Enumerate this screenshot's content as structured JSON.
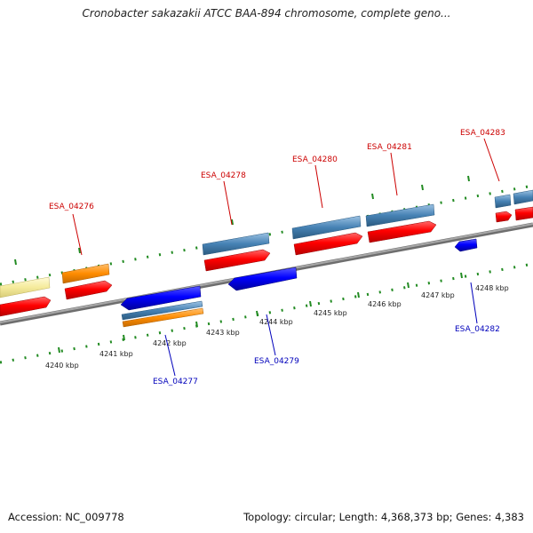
{
  "title": "Cronobacter sakazakii ATCC BAA-894 chromosome, complete geno...",
  "footer": {
    "accession": "Accession: NC_009778",
    "topology": "Topology: circular; Length: 4,368,373 bp; Genes: 4,383"
  },
  "colors": {
    "forward_label": "#cc0000",
    "reverse_label": "#0000bb",
    "backbone": "#888888",
    "tick": "#228b22",
    "cds_red": "#ff0000",
    "cds_blue": "#0000ff",
    "steel_blue": "#4682b4",
    "orange": "#ff8c00",
    "pale_yellow": "#f5eb9c"
  },
  "scale_labels": [
    "4240 kbp",
    "4241 kbp",
    "4242 kbp",
    "4243 kbp",
    "4244 kbp",
    "4245 kbp",
    "4246 kbp",
    "4247 kbp",
    "4248 kbp"
  ],
  "gene_labels": [
    {
      "id": "ESA_04276",
      "strand": "forward"
    },
    {
      "id": "ESA_04278",
      "strand": "forward"
    },
    {
      "id": "ESA_04280",
      "strand": "forward"
    },
    {
      "id": "ESA_04281",
      "strand": "forward"
    },
    {
      "id": "ESA_04283",
      "strand": "forward"
    },
    {
      "id": "ESA_04277",
      "strand": "reverse"
    },
    {
      "id": "ESA_04279",
      "strand": "reverse"
    },
    {
      "id": "ESA_04282",
      "strand": "reverse"
    }
  ]
}
